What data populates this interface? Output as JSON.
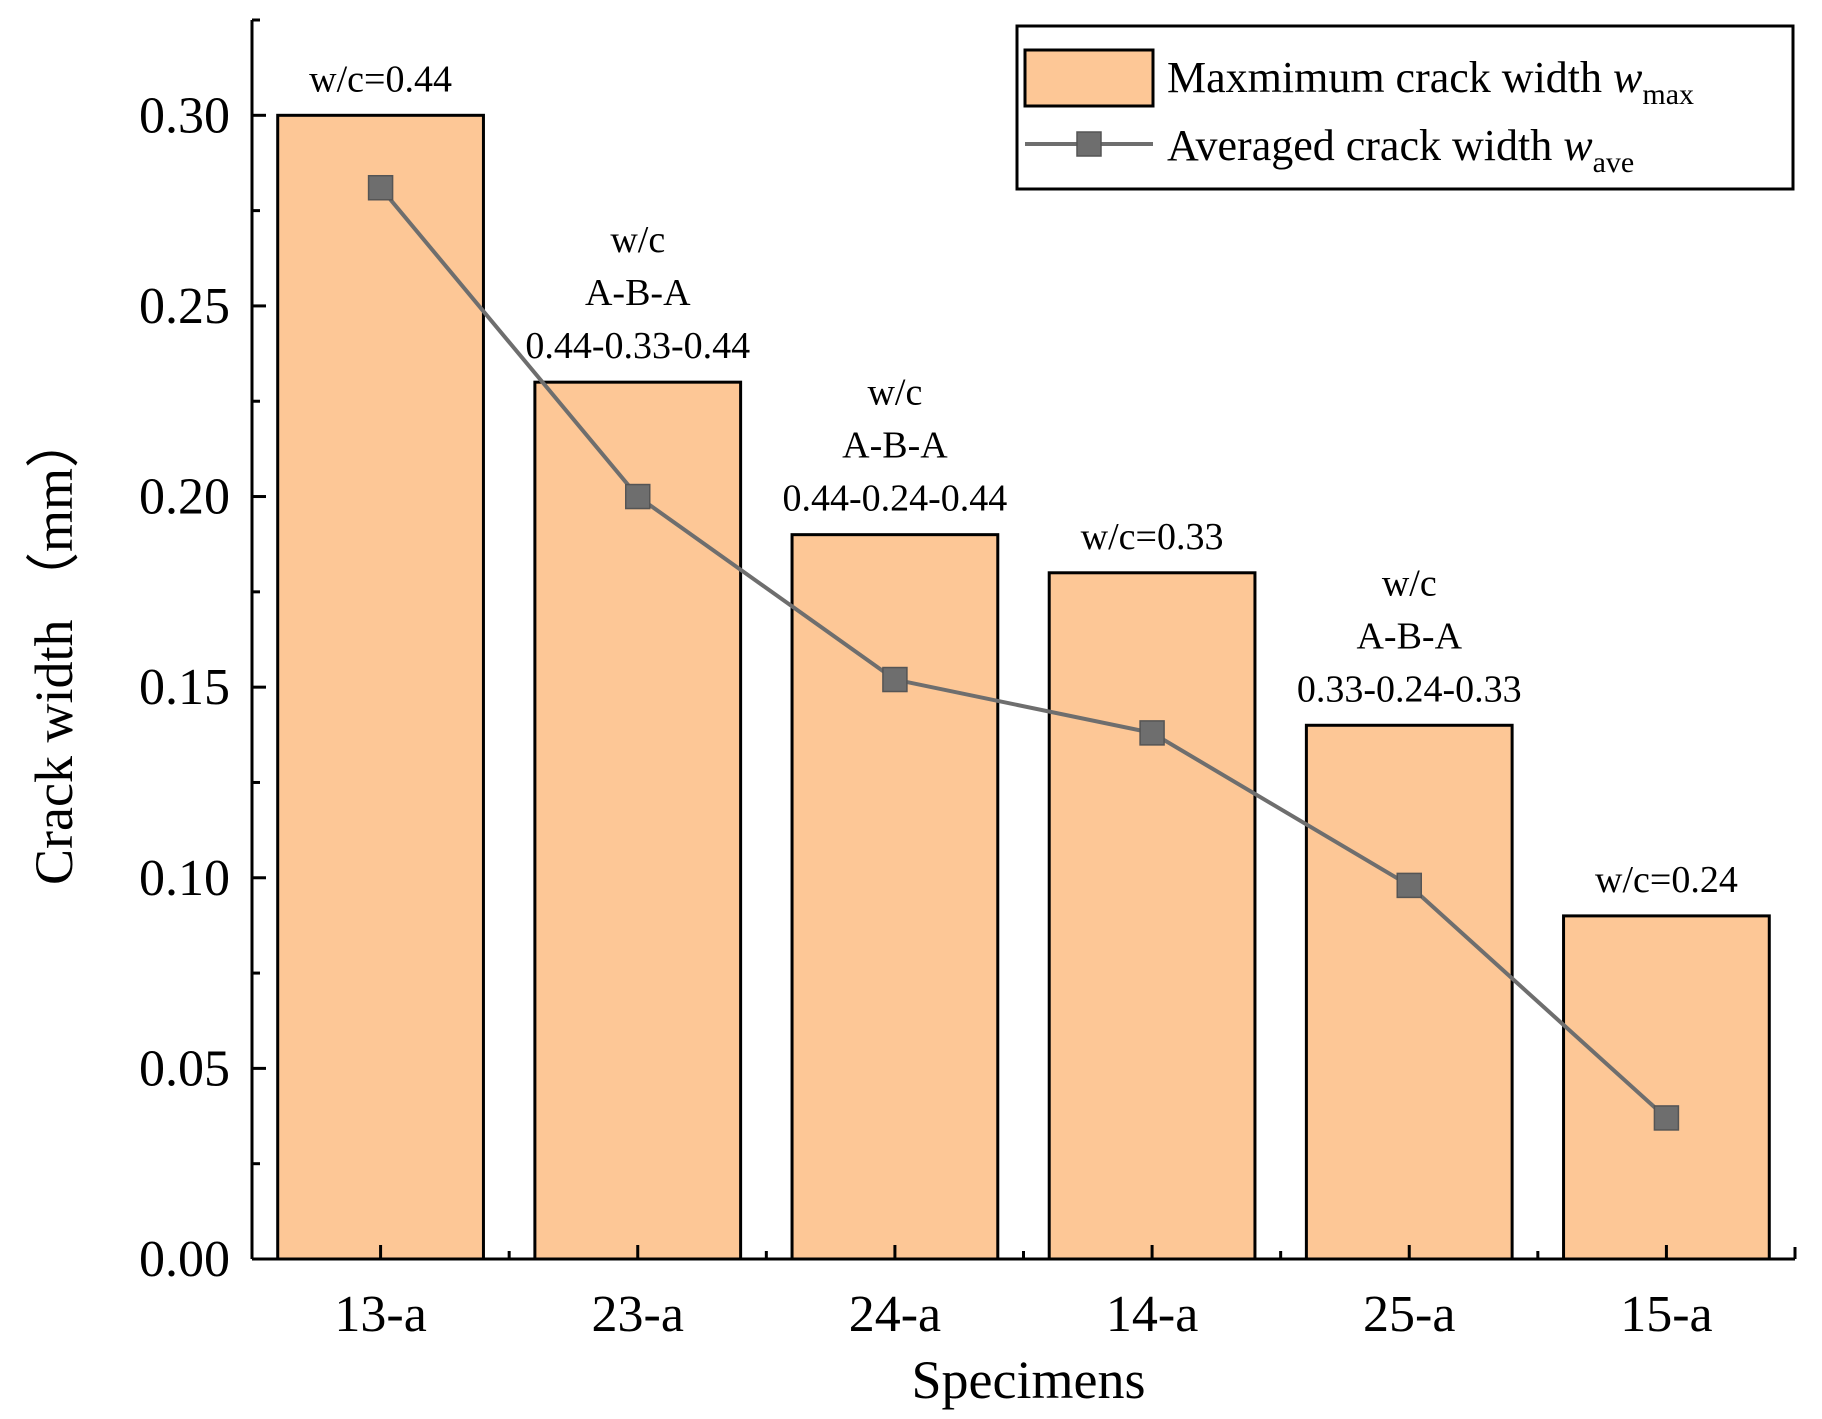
{
  "chart_data": {
    "type": "bar",
    "xlabel": "Specimens",
    "ylabel": "Crack width （mm）",
    "ylim": [
      0,
      0.325
    ],
    "yticks": [
      "0.00",
      "0.05",
      "0.10",
      "0.15",
      "0.20",
      "0.25",
      "0.30"
    ],
    "ytick_values": [
      0,
      0.05,
      0.1,
      0.15,
      0.2,
      0.25,
      0.3
    ],
    "categories": [
      "13-a",
      "23-a",
      "24-a",
      "14-a",
      "25-a",
      "15-a"
    ],
    "series": [
      {
        "name": "Maxmimum crack width w_max",
        "kind": "bar",
        "color": "#FDC796",
        "values": [
          0.3,
          0.23,
          0.19,
          0.18,
          0.14,
          0.09
        ]
      },
      {
        "name": "Averaged crack width w_ave",
        "kind": "line",
        "marker": "square",
        "color": "#6E6E6E",
        "values": [
          0.281,
          0.2,
          0.152,
          0.138,
          0.098,
          0.037
        ]
      }
    ],
    "annotations": [
      {
        "category": "13-a",
        "lines": [
          "w/c=0.44"
        ]
      },
      {
        "category": "23-a",
        "lines": [
          "w/c",
          "A-B-A",
          "0.44-0.33-0.44"
        ]
      },
      {
        "category": "24-a",
        "lines": [
          "w/c",
          "A-B-A",
          "0.44-0.24-0.44"
        ]
      },
      {
        "category": "14-a",
        "lines": [
          "w/c=0.33"
        ]
      },
      {
        "category": "25-a",
        "lines": [
          "w/c",
          "A-B-A",
          "0.33-0.24-0.33"
        ]
      },
      {
        "category": "15-a",
        "lines": [
          "w/c=0.24"
        ]
      }
    ],
    "legend": {
      "position": "top-right",
      "items": [
        {
          "text": "Maxmimum crack width ",
          "var": "w",
          "sub": "max"
        },
        {
          "text": "Averaged crack width ",
          "var": "w",
          "sub": "ave"
        }
      ]
    }
  }
}
